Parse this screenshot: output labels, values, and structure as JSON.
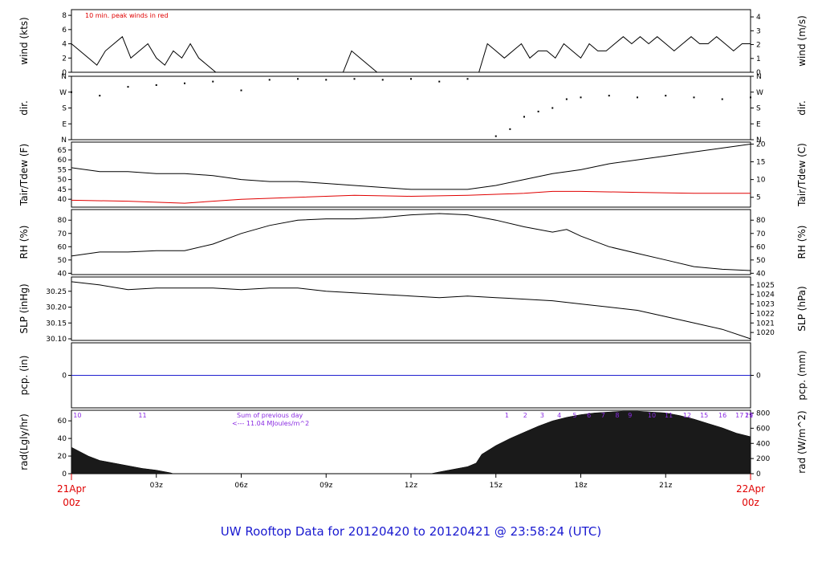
{
  "footer_title": "UW Rooftop Data for 20120420  to  20120421 @ 23:58:24  (UTC)",
  "x_axis": {
    "ticks": [
      "03z",
      "06z",
      "09z",
      "12z",
      "15z",
      "18z",
      "21z"
    ],
    "start_label": [
      "21Apr",
      "00z"
    ],
    "end_label": [
      "22Apr",
      "00z"
    ],
    "hours": [
      3,
      6,
      9,
      12,
      15,
      18,
      21
    ]
  },
  "colors": {
    "accent_red": "#e00000",
    "title_blue": "#1a1ad0",
    "purple": "#8a2be2",
    "pcp_blue": "#2020d0"
  },
  "chart_data": [
    {
      "type": "line",
      "panel": "wind",
      "ylabel_left": "wind (kts)",
      "ylabel_right": "wind (m/s)",
      "annotation": "10 min. peak winds in red",
      "ylim": [
        0,
        8.8
      ],
      "left_ticks": [
        0,
        2,
        4,
        6,
        8
      ],
      "right_ticks": [
        {
          "label": "0",
          "v": 0
        },
        {
          "label": "1",
          "v": 1.94
        },
        {
          "label": "2",
          "v": 3.89
        },
        {
          "label": "3",
          "v": 5.83
        },
        {
          "label": "4",
          "v": 7.78
        }
      ],
      "series": [
        {
          "x": [
            0,
            0.3,
            0.6,
            0.9,
            1.2,
            1.5,
            1.8,
            2.1,
            2.4,
            2.7,
            3.0,
            3.3,
            3.6,
            3.9,
            4.2,
            4.5,
            4.8,
            5.1,
            5.4,
            5.7,
            6.0,
            6.3,
            6.6,
            6.9,
            7.2,
            7.5,
            7.8,
            8.1,
            8.4,
            8.7,
            9.0,
            9.3,
            9.6,
            9.9,
            10.2,
            10.5,
            10.8,
            11.1,
            11.4,
            11.7,
            12.0,
            12.3,
            12.6,
            12.9,
            13.2,
            13.5,
            13.8,
            14.1,
            14.4,
            14.7,
            15.0,
            15.3,
            15.6,
            15.9,
            16.2,
            16.5,
            16.8,
            17.1,
            17.4,
            17.7,
            18.0,
            18.3,
            18.6,
            18.9,
            19.2,
            19.5,
            19.8,
            20.1,
            20.4,
            20.7,
            21.0,
            21.3,
            21.6,
            21.9,
            22.2,
            22.5,
            22.8,
            23.1,
            23.4,
            23.7,
            24.0
          ],
          "y": [
            4,
            3,
            2,
            1,
            3,
            4,
            5,
            2,
            3,
            4,
            2,
            1,
            3,
            2,
            4,
            2,
            1,
            0,
            0,
            0,
            0,
            0,
            0,
            0,
            0,
            0,
            0,
            0,
            0,
            0,
            0,
            0,
            0,
            3,
            2,
            1,
            0,
            0,
            0,
            0,
            0,
            0,
            0,
            0,
            0,
            0,
            0,
            0,
            0,
            4,
            3,
            2,
            3,
            4,
            2,
            3,
            3,
            2,
            4,
            3,
            2,
            4,
            3,
            3,
            4,
            5,
            4,
            5,
            4,
            5,
            4,
            3,
            4,
            5,
            4,
            4,
            5,
            4,
            3,
            4,
            4
          ]
        }
      ]
    },
    {
      "type": "scatter",
      "panel": "dir",
      "ylabel_left": "dir.",
      "ylabel_right": "dir.",
      "ylim": [
        0,
        360
      ],
      "ticks": [
        {
          "label": "N",
          "v": 0
        },
        {
          "label": "E",
          "v": 90
        },
        {
          "label": "S",
          "v": 180
        },
        {
          "label": "W",
          "v": 270
        },
        {
          "label": "N",
          "v": 360
        }
      ],
      "series": [
        {
          "x": [
            0,
            1,
            2,
            3,
            4,
            5,
            6,
            7,
            8,
            9,
            10,
            11,
            12,
            13,
            14,
            15,
            15.5,
            16,
            16.5,
            17,
            17.5,
            18,
            19,
            20,
            21,
            22,
            23,
            24
          ],
          "y": [
            270,
            250,
            300,
            310,
            320,
            330,
            280,
            340,
            345,
            340,
            345,
            340,
            345,
            330,
            345,
            20,
            60,
            130,
            160,
            180,
            230,
            240,
            250,
            240,
            250,
            240,
            230,
            240
          ]
        }
      ]
    },
    {
      "type": "line",
      "panel": "temp",
      "ylabel_left": "Tair/Tdew (F)",
      "ylabel_right": "Tair/Tdew (C)",
      "ylim": [
        36,
        69
      ],
      "left_ticks": [
        40,
        45,
        50,
        55,
        60,
        65
      ],
      "right_ticks": [
        {
          "label": "5",
          "v": 41
        },
        {
          "label": "10",
          "v": 50
        },
        {
          "label": "15",
          "v": 59
        },
        {
          "label": "20",
          "v": 68
        }
      ],
      "series": [
        {
          "color": "#000000",
          "x": [
            0,
            1,
            2,
            3,
            4,
            5,
            6,
            7,
            8,
            9,
            10,
            11,
            12,
            13,
            14,
            15,
            16,
            17,
            18,
            19,
            20,
            21,
            22,
            23,
            24
          ],
          "y": [
            56,
            54,
            54,
            53,
            53,
            52,
            50,
            49,
            49,
            48,
            47,
            46,
            45,
            45,
            45,
            47,
            50,
            53,
            55,
            58,
            60,
            62,
            64,
            66,
            68
          ]
        },
        {
          "color": "#e00000",
          "x": [
            0,
            2,
            4,
            6,
            8,
            10,
            12,
            14,
            16,
            17,
            18,
            20,
            22,
            24
          ],
          "y": [
            39.5,
            39,
            38,
            40,
            41,
            42,
            41.5,
            42,
            43,
            44,
            44,
            43.5,
            43,
            43
          ]
        }
      ]
    },
    {
      "type": "line",
      "panel": "rh",
      "ylabel_left": "RH (%)",
      "ylabel_right": "RH (%)",
      "ylim": [
        39,
        88
      ],
      "left_ticks": [
        40,
        50,
        60,
        70,
        80
      ],
      "right_ticks": [
        {
          "label": "40",
          "v": 40
        },
        {
          "label": "50",
          "v": 50
        },
        {
          "label": "60",
          "v": 60
        },
        {
          "label": "70",
          "v": 70
        },
        {
          "label": "80",
          "v": 80
        }
      ],
      "series": [
        {
          "x": [
            0,
            1,
            2,
            3,
            4,
            5,
            6,
            7,
            8,
            9,
            10,
            11,
            12,
            13,
            14,
            15,
            16,
            17,
            17.5,
            18,
            19,
            20,
            21,
            22,
            23,
            24
          ],
          "y": [
            53,
            56,
            56,
            57,
            57,
            62,
            70,
            76,
            80,
            81,
            81,
            82,
            84,
            85,
            84,
            80,
            75,
            71,
            73,
            68,
            60,
            55,
            50,
            45,
            43,
            42
          ]
        }
      ]
    },
    {
      "type": "line",
      "panel": "slp",
      "ylabel_left": "SLP (inHg)",
      "ylabel_right": "SLP (hPa)",
      "ylim": [
        30.095,
        30.295
      ],
      "left_ticks": [
        {
          "label": "30.10",
          "v": 30.1
        },
        {
          "label": "30.15",
          "v": 30.15
        },
        {
          "label": "30.20",
          "v": 30.2
        },
        {
          "label": "30.25",
          "v": 30.25
        }
      ],
      "right_ticks": [
        {
          "label": "1020",
          "v": 30.12
        },
        {
          "label": "1021",
          "v": 30.15
        },
        {
          "label": "1022",
          "v": 30.18
        },
        {
          "label": "1023",
          "v": 30.21
        },
        {
          "label": "1024",
          "v": 30.24
        },
        {
          "label": "1025",
          "v": 30.27
        }
      ],
      "series": [
        {
          "x": [
            0,
            1,
            2,
            3,
            4,
            5,
            6,
            7,
            8,
            9,
            10,
            11,
            12,
            13,
            14,
            15,
            16,
            17,
            18,
            19,
            20,
            21,
            22,
            23,
            24
          ],
          "y": [
            30.28,
            30.27,
            30.255,
            30.26,
            30.26,
            30.26,
            30.255,
            30.26,
            30.26,
            30.25,
            30.245,
            30.24,
            30.235,
            30.23,
            30.235,
            30.23,
            30.225,
            30.22,
            30.21,
            30.2,
            30.19,
            30.17,
            30.15,
            30.13,
            30.1
          ]
        }
      ]
    },
    {
      "type": "line",
      "panel": "pcp",
      "ylabel_left": "pcp. (in)",
      "ylabel_right": "pcp. (mm)",
      "ylim": [
        -1,
        1
      ],
      "left_ticks": [
        {
          "label": "0",
          "v": 0
        }
      ],
      "right_ticks": [
        {
          "label": "0",
          "v": 0
        }
      ],
      "series": [
        {
          "color": "#2020d0",
          "x": [
            0,
            24
          ],
          "y": [
            0,
            0
          ]
        }
      ]
    },
    {
      "type": "area",
      "panel": "rad",
      "ylabel_left": "rad(Lgly/hr)",
      "ylabel_right": "rad (W/m^2)",
      "annotation": [
        "Sum of previous day",
        "<--- 11.04 MJoules/m^2"
      ],
      "ylim": [
        0,
        72
      ],
      "left_ticks": [
        0,
        20,
        40,
        60
      ],
      "right_ticks": [
        {
          "label": "0",
          "v": 0
        },
        {
          "label": "200",
          "v": 17.2
        },
        {
          "label": "400",
          "v": 34.4
        },
        {
          "label": "600",
          "v": 51.6
        },
        {
          "label": "800",
          "v": 68.8
        }
      ],
      "hour_marks": [
        {
          "label": "10",
          "h": 0.15
        },
        {
          "label": "11",
          "h": 2.45
        },
        {
          "label": "1",
          "h": 15.4
        },
        {
          "label": "2",
          "h": 16.05
        },
        {
          "label": "3",
          "h": 16.65
        },
        {
          "label": "4",
          "h": 17.25
        },
        {
          "label": "5",
          "h": 17.8
        },
        {
          "label": "6",
          "h": 18.3
        },
        {
          "label": "7",
          "h": 18.8
        },
        {
          "label": "8",
          "h": 19.3
        },
        {
          "label": "9",
          "h": 19.75
        },
        {
          "label": "10",
          "h": 20.45
        },
        {
          "label": "11",
          "h": 21.05
        },
        {
          "label": "12",
          "h": 21.7
        },
        {
          "label": "15",
          "h": 22.3
        },
        {
          "label": "16",
          "h": 22.95
        },
        {
          "label": "17",
          "h": 23.55
        },
        {
          "label": "19",
          "h": 24.4
        },
        {
          "label": "21",
          "h": 25.0
        }
      ],
      "series": [
        {
          "x": [
            0,
            0.3,
            0.6,
            1,
            1.5,
            2,
            2.5,
            3,
            3.5,
            3.6,
            12.7,
            13,
            13.5,
            14,
            14.3,
            14.5,
            15,
            15.5,
            16,
            16.5,
            17,
            17.5,
            18,
            18.5,
            19,
            19.5,
            20,
            20.5,
            21,
            21.5,
            22,
            22.5,
            23,
            23.5,
            24
          ],
          "y": [
            30,
            25,
            20,
            15,
            12,
            9,
            6,
            4,
            1,
            0,
            0,
            2,
            5,
            8,
            12,
            22,
            32,
            40,
            47,
            54,
            60,
            64,
            67,
            69,
            70,
            71,
            71,
            70,
            69,
            66,
            62,
            57,
            52,
            46,
            42
          ]
        }
      ]
    }
  ]
}
